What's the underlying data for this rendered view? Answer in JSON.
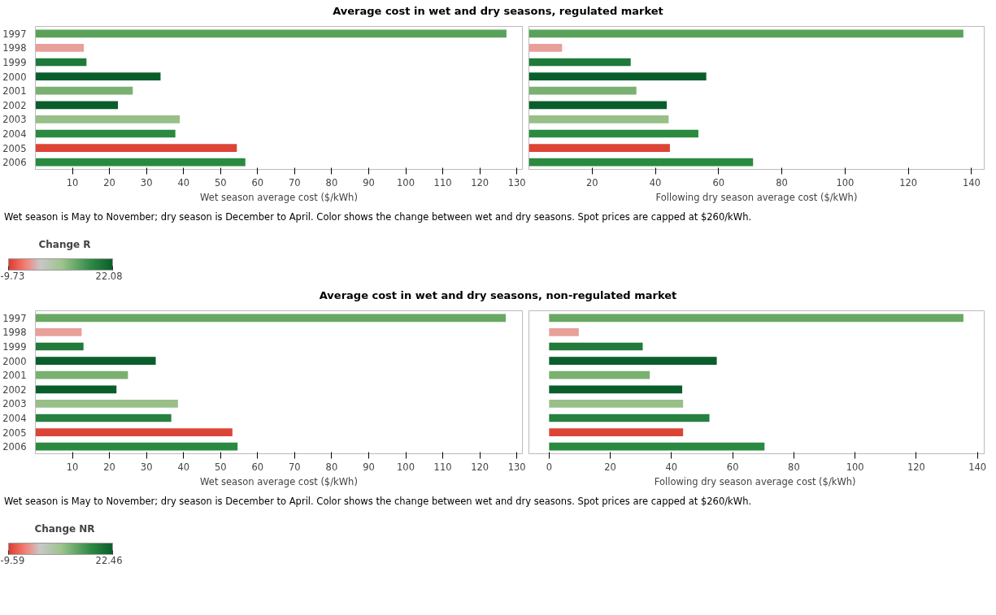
{
  "chart_data": [
    {
      "type": "bar",
      "orientation": "horizontal",
      "title": "Average cost in wet and dry seasons, regulated market",
      "categories": [
        "1997",
        "1998",
        "1999",
        "2000",
        "2001",
        "2002",
        "2003",
        "2004",
        "2005",
        "2006"
      ],
      "values": [
        127.2,
        13.1,
        13.8,
        33.8,
        26.3,
        22.3,
        39.0,
        37.8,
        54.4,
        56.7
      ],
      "colors": [
        "#5aa25a",
        "#e8a09a",
        "#1e7a3a",
        "#0a5e2c",
        "#7ab070",
        "#0a5e2c",
        "#98bf88",
        "#2a8a40",
        "#dc4536",
        "#2a8a40"
      ],
      "xlim": [
        0,
        131.5
      ],
      "xticks": [
        10,
        20,
        30,
        40,
        50,
        60,
        70,
        80,
        90,
        100,
        110,
        120,
        130
      ],
      "xlabel": "Wet season average cost ($/kWh)",
      "annotations": [
        "Wet season is May to November; dry season is December to April. Color shows the change between wet and dry seasons. Spot prices are capped at $260/kWh."
      ],
      "clabel": "Change R",
      "clim": [
        -9.73,
        22.08
      ],
      "cticks": [
        -9.73,
        22.08
      ]
    },
    {
      "type": "bar",
      "orientation": "horizontal",
      "categories": [
        "1997",
        "1998",
        "1999",
        "2000",
        "2001",
        "2002",
        "2003",
        "2004",
        "2005",
        "2006"
      ],
      "values": [
        137.4,
        10.5,
        32.2,
        56.1,
        34.0,
        43.6,
        44.2,
        53.6,
        44.6,
        70.9
      ],
      "colors": [
        "#5aa25a",
        "#e8a09a",
        "#1e7a3a",
        "#0a5e2c",
        "#7ab070",
        "#0a5e2c",
        "#98bf88",
        "#2a8a40",
        "#dc4536",
        "#2a8a40"
      ],
      "xlim": [
        0,
        144
      ],
      "xticks": [
        20,
        40,
        60,
        80,
        100,
        120,
        140
      ],
      "xlabel": "Following dry season average cost ($/kWh)",
      "tick_labels": "x"
    },
    {
      "type": "bar",
      "orientation": "horizontal",
      "title": "Average cost in wet and dry seasons, non-regulated market",
      "categories": [
        "1997",
        "1998",
        "1999",
        "2000",
        "2001",
        "2002",
        "2003",
        "2004",
        "2005",
        "2006"
      ],
      "values": [
        127.0,
        12.5,
        13.0,
        32.5,
        25.0,
        21.9,
        38.5,
        36.7,
        53.2,
        54.6
      ],
      "colors": [
        "#68a862",
        "#e8a09a",
        "#237a3a",
        "#0a5e2c",
        "#7ab070",
        "#0a5e2c",
        "#98bf88",
        "#268040",
        "#dc4536",
        "#2a8a40"
      ],
      "xlim": [
        0,
        131.5
      ],
      "xticks": [
        10,
        20,
        30,
        40,
        50,
        60,
        70,
        80,
        90,
        100,
        110,
        120,
        130
      ],
      "xlabel": "Wet season average cost ($/kWh)",
      "annotations": [
        "Wet season is May to November; dry season is December to April. Color shows the change between wet and dry seasons. Spot prices are capped at $260/kWh."
      ],
      "clabel": "Change NR",
      "clim": [
        -9.59,
        22.46
      ],
      "cticks": [
        -9.59,
        22.46
      ]
    },
    {
      "type": "bar",
      "orientation": "horizontal",
      "categories": [
        "1997",
        "1998",
        "1999",
        "2000",
        "2001",
        "2002",
        "2003",
        "2004",
        "2005",
        "2006"
      ],
      "values": [
        135.4,
        9.7,
        30.6,
        54.8,
        32.9,
        43.5,
        43.8,
        52.4,
        43.8,
        70.4
      ],
      "colors": [
        "#68a862",
        "#e8a09a",
        "#237a3a",
        "#0a5e2c",
        "#7ab070",
        "#0a5e2c",
        "#98bf88",
        "#268040",
        "#dc4536",
        "#2a8a40"
      ],
      "xlim": [
        -6.6,
        142.2
      ],
      "xticks": [
        0,
        20,
        40,
        60,
        80,
        100,
        120,
        140
      ],
      "xlabel": "Following dry season average cost  ($/kWh)",
      "tick_labels": "x"
    }
  ]
}
